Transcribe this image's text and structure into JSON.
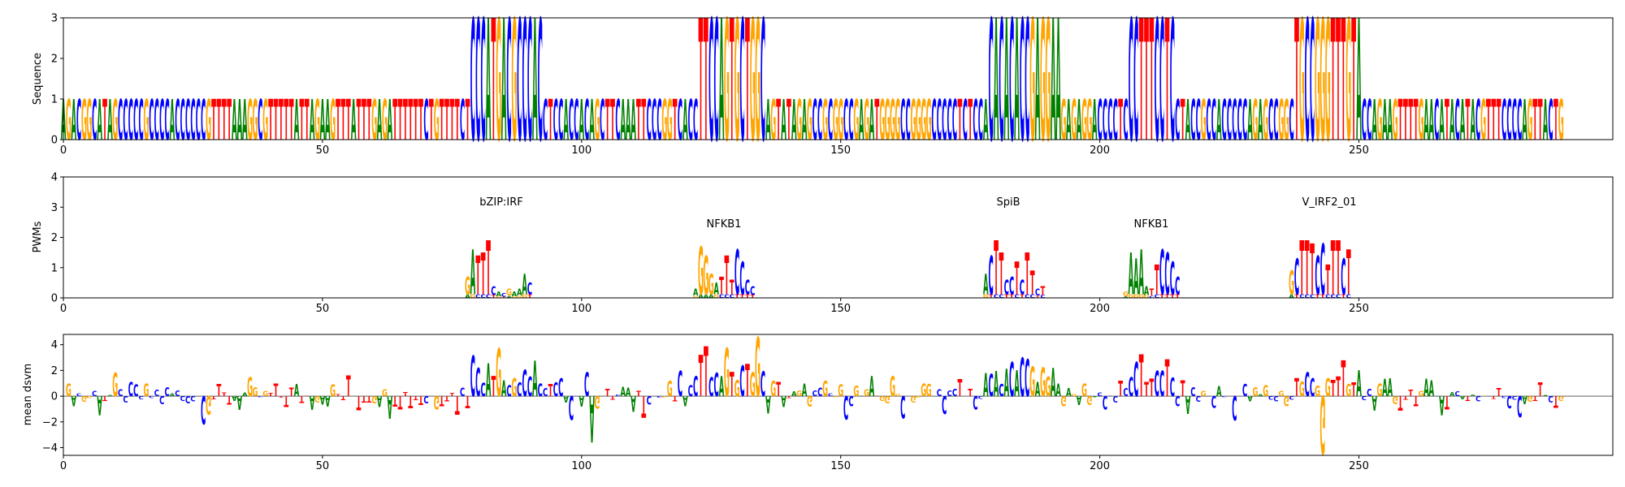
{
  "chart_data": [
    {
      "type": "sequence-logo",
      "ylabel": "Sequence",
      "xlim": [
        0,
        299
      ],
      "ylim": [
        0,
        3
      ],
      "xticks": [
        0,
        50,
        100,
        150,
        200,
        250
      ],
      "yticks": [
        0,
        1,
        2,
        3
      ],
      "colors": {
        "A": "#008000",
        "C": "#0000ff",
        "G": "#ffa500",
        "T": "#ff0000"
      },
      "sequence": "AGACGGCATAGCCCCCGCCCCACCCCCCGTTTTAAAGGCGTTTTTATTAGAAGTTTATTTGAGATTTTTTCTGTTTTCTCCCATGACGCCCACCTCCACCACAGCTTCAAATTCCCGGTCACCTTCCAGTGCTGGCAGTATAGAGCCGCGGCCGAGATGGGGCCGGGGCCCCCTCTCCACACACACCGAGGAAGAGAGGACCCCTCCCTTTCCTCCTACCGCCACCCCCAGAGCCGGCTGCCGGGTTTGTACCAGAAGTTTTGAACATACATACGTTTCCCCAGTTACTG",
      "regions": [
        {
          "start": 79,
          "end": 92,
          "height": 3.0
        },
        {
          "start": 123,
          "end": 135,
          "height": 3.0
        },
        {
          "start": 179,
          "end": 192,
          "height": 3.0
        },
        {
          "start": 206,
          "end": 214,
          "height": 3.0
        },
        {
          "start": 238,
          "end": 250,
          "height": 3.0
        }
      ]
    },
    {
      "type": "motif-logo",
      "ylabel": "PWMs",
      "xlim": [
        0,
        299
      ],
      "ylim": [
        0,
        4
      ],
      "xticks": [
        0,
        50,
        100,
        150,
        200,
        250
      ],
      "yticks": [
        0,
        1,
        2,
        3,
        4
      ],
      "motifs": [
        {
          "name": "bZIP:IRF",
          "start": 78,
          "label_y": 3.1,
          "seq": "GATTTCACGAAAC",
          "heights": [
            0.7,
            1.6,
            1.4,
            1.5,
            1.9,
            0.4,
            0.2,
            0.15,
            0.3,
            0.2,
            0.3,
            0.8,
            0.5
          ]
        },
        {
          "name": "NFKB1",
          "start": 122,
          "label_y": 2.4,
          "seq": "AGGGATTTCCCC",
          "heights": [
            0.3,
            1.7,
            1.4,
            0.8,
            0.5,
            0.7,
            1.4,
            0.6,
            1.6,
            1.2,
            0.6,
            0.4
          ]
        },
        {
          "name": "SpiB",
          "start": 178,
          "label_y": 3.1,
          "seq": "ACTTCCTCTTCT",
          "heights": [
            0.8,
            1.4,
            1.9,
            1.5,
            0.6,
            0.7,
            1.2,
            0.6,
            1.5,
            0.9,
            0.3,
            0.4
          ]
        },
        {
          "name": "NFKB1",
          "start": 205,
          "label_y": 2.4,
          "seq": "GAAAATTCCCC",
          "heights": [
            0.2,
            1.5,
            1.3,
            1.6,
            0.4,
            0.3,
            1.1,
            1.6,
            1.5,
            1.2,
            0.7
          ]
        },
        {
          "name": "V_IRF2_01",
          "start": 237,
          "label_y": 3.1,
          "seq": "GCTTTCCTTTCT",
          "heights": [
            0.9,
            1.3,
            1.9,
            1.9,
            1.8,
            1.4,
            1.8,
            1.1,
            1.9,
            1.9,
            1.3,
            1.6
          ]
        }
      ]
    },
    {
      "type": "attribution-logo",
      "ylabel": "mean dsvm",
      "xlim": [
        0,
        299
      ],
      "ylim": [
        -4.6,
        4.8
      ],
      "xticks": [
        0,
        50,
        100,
        150,
        200,
        250
      ],
      "yticks": [
        -4,
        -2,
        0,
        2,
        4
      ]
    }
  ],
  "ticks": {
    "x": [
      "0",
      "50",
      "100",
      "150",
      "200",
      "250"
    ],
    "y1": [
      "0",
      "1",
      "2",
      "3"
    ],
    "y2": [
      "0",
      "1",
      "2",
      "3",
      "4"
    ],
    "y3": [
      "−4",
      "−2",
      "0",
      "2",
      "4"
    ]
  },
  "labels": {
    "p1_ylabel": "Sequence",
    "p2_ylabel": "PWMs",
    "p3_ylabel": "mean dsvm",
    "m1": "bZIP:IRF",
    "m2": "NFKB1",
    "m3": "SpiB",
    "m4": "NFKB1",
    "m5": "V_IRF2_01"
  }
}
